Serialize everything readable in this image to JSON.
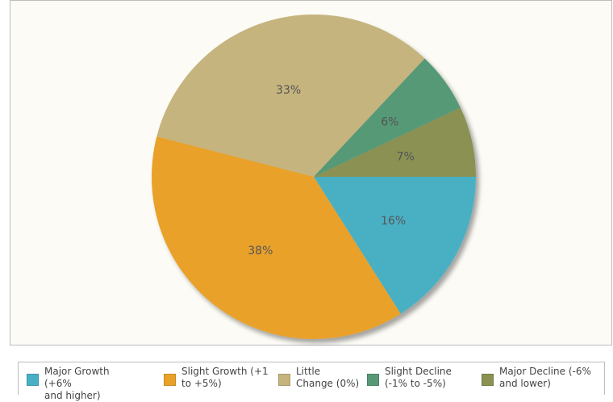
{
  "chart_data": {
    "type": "pie",
    "title": "",
    "legend_position": "bottom",
    "slices": [
      {
        "name": "Major Growth (+6% and higher)",
        "label_line1": "Major Growth (+6%",
        "label_line2": "and higher)",
        "value": 16,
        "display": "16%",
        "color": "#48b0c4"
      },
      {
        "name": "Slight Growth (+1 to +5%)",
        "label_line1": "Slight Growth (+1",
        "label_line2": "to +5%)",
        "value": 38,
        "display": "38%",
        "color": "#e9a12a"
      },
      {
        "name": "Little Change (0%)",
        "label_line1": "Little",
        "label_line2": "Change (0%)",
        "value": 33,
        "display": "33%",
        "color": "#c5b47e"
      },
      {
        "name": "Slight Decline (-1% to -5%)",
        "label_line1": "Slight Decline",
        "label_line2": "(-1% to -5%)",
        "value": 6,
        "display": "6%",
        "color": "#579977"
      },
      {
        "name": "Major Decline (-6% and lower)",
        "label_line1": "Major Decline (-6%",
        "label_line2": "and lower)",
        "value": 7,
        "display": "7%",
        "color": "#8a9152"
      }
    ]
  }
}
